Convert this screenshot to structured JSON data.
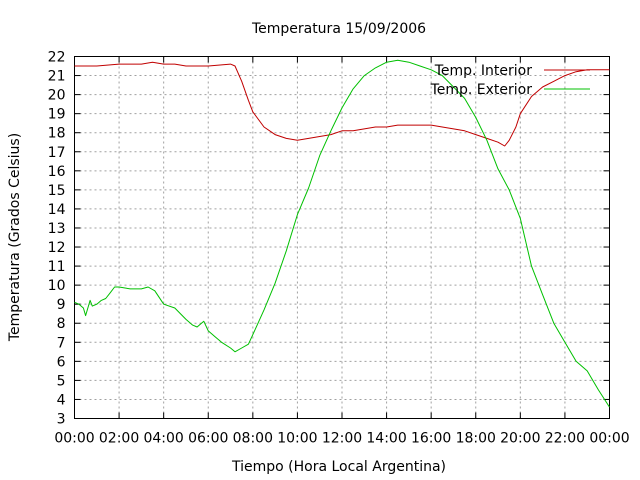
{
  "chart_data": {
    "type": "line",
    "title": "Temperatura 15/09/2006",
    "xlabel": "Tiempo (Hora Local Argentina)",
    "ylabel": "Temperatura (Grados Celsius)",
    "xlim": [
      0,
      24
    ],
    "ylim": [
      3,
      22
    ],
    "x_ticks": [
      0,
      2,
      4,
      6,
      8,
      10,
      12,
      14,
      16,
      18,
      20,
      22,
      24
    ],
    "x_tick_labels": [
      "00:00",
      "02:00",
      "04:00",
      "06:00",
      "08:00",
      "10:00",
      "12:00",
      "14:00",
      "16:00",
      "18:00",
      "20:00",
      "22:00",
      "00:00"
    ],
    "y_ticks": [
      3,
      4,
      5,
      6,
      7,
      8,
      9,
      10,
      11,
      12,
      13,
      14,
      15,
      16,
      17,
      18,
      19,
      20,
      21,
      22
    ],
    "grid": true,
    "legend_position": "top-right",
    "series": [
      {
        "name": "Temp. Interior",
        "color": "#c00000",
        "x": [
          0,
          1,
          2,
          3,
          3.5,
          4,
          4.5,
          5,
          6,
          7,
          7.2,
          7.5,
          7.8,
          8,
          8.5,
          9,
          9.5,
          10,
          10.5,
          11,
          11.5,
          12,
          12.5,
          13,
          13.5,
          14,
          14.5,
          15,
          15.5,
          16,
          16.5,
          17,
          17.5,
          18,
          18.5,
          19,
          19.3,
          19.5,
          19.8,
          20,
          20.5,
          21,
          21.5,
          22,
          22.5,
          23,
          23.5,
          24
        ],
        "y": [
          21.5,
          21.5,
          21.6,
          21.6,
          21.7,
          21.6,
          21.6,
          21.5,
          21.5,
          21.6,
          21.5,
          20.7,
          19.7,
          19.1,
          18.3,
          17.9,
          17.7,
          17.6,
          17.7,
          17.8,
          17.9,
          18.1,
          18.1,
          18.2,
          18.3,
          18.3,
          18.4,
          18.4,
          18.4,
          18.4,
          18.3,
          18.2,
          18.1,
          17.9,
          17.7,
          17.5,
          17.3,
          17.6,
          18.3,
          19.0,
          19.9,
          20.4,
          20.7,
          21.0,
          21.2,
          21.3,
          21.3,
          21.3
        ]
      },
      {
        "name": "Temp. Exterior",
        "color": "#00c000",
        "x": [
          0,
          0.2,
          0.4,
          0.5,
          0.7,
          0.8,
          1.0,
          1.2,
          1.4,
          1.6,
          1.8,
          2.0,
          2.5,
          3.0,
          3.3,
          3.6,
          4.0,
          4.5,
          5.0,
          5.3,
          5.5,
          5.8,
          6.0,
          6.3,
          6.6,
          7.0,
          7.2,
          7.5,
          7.8,
          8.0,
          8.5,
          9.0,
          9.5,
          10.0,
          10.5,
          11.0,
          11.5,
          12.0,
          12.5,
          13.0,
          13.5,
          14.0,
          14.5,
          15.0,
          15.5,
          16.0,
          16.5,
          17.0,
          17.5,
          18.0,
          18.5,
          19.0,
          19.5,
          20.0,
          20.5,
          21.0,
          21.5,
          22.0,
          22.5,
          23.0,
          23.5,
          24.0
        ],
        "y": [
          9.1,
          9.0,
          8.8,
          8.4,
          9.2,
          8.9,
          9.0,
          9.2,
          9.3,
          9.6,
          9.9,
          9.9,
          9.8,
          9.8,
          9.9,
          9.7,
          9.0,
          8.8,
          8.2,
          7.9,
          7.8,
          8.1,
          7.6,
          7.3,
          7.0,
          6.7,
          6.5,
          6.7,
          6.9,
          7.4,
          8.7,
          10.1,
          11.8,
          13.7,
          15.1,
          16.8,
          18.1,
          19.3,
          20.3,
          21.0,
          21.4,
          21.7,
          21.8,
          21.7,
          21.5,
          21.3,
          21.0,
          20.4,
          19.8,
          18.8,
          17.6,
          16.1,
          15.0,
          13.5,
          11.0,
          9.5,
          8.0,
          7.0,
          6.0,
          5.5,
          4.5,
          3.6
        ]
      }
    ]
  }
}
